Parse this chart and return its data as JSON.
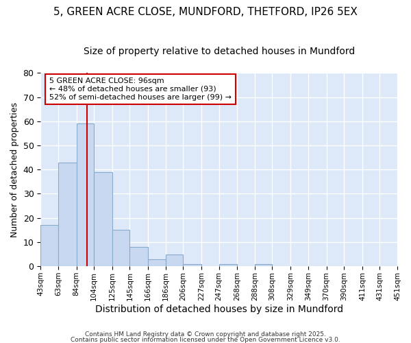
{
  "title": "5, GREEN ACRE CLOSE, MUNDFORD, THETFORD, IP26 5EX",
  "subtitle": "Size of property relative to detached houses in Mundford",
  "xlabel": "Distribution of detached houses by size in Mundford",
  "ylabel": "Number of detached properties",
  "bar_values": [
    17,
    43,
    59,
    39,
    15,
    8,
    3,
    5,
    1,
    0,
    1,
    0,
    1,
    0,
    0,
    0,
    0,
    0,
    0,
    0
  ],
  "bin_edges": [
    43,
    63,
    84,
    104,
    125,
    145,
    166,
    186,
    206,
    227,
    247,
    268,
    288,
    308,
    329,
    349,
    370,
    390,
    411,
    431,
    451
  ],
  "x_tick_labels": [
    "43sqm",
    "63sqm",
    "84sqm",
    "104sqm",
    "125sqm",
    "145sqm",
    "166sqm",
    "186sqm",
    "206sqm",
    "227sqm",
    "247sqm",
    "268sqm",
    "288sqm",
    "308sqm",
    "329sqm",
    "349sqm",
    "370sqm",
    "390sqm",
    "411sqm",
    "431sqm",
    "451sqm"
  ],
  "bar_color": "#c8d8f0",
  "bar_edge_color": "#88aacc",
  "red_line_x": 96,
  "annotation_line1": "5 GREEN ACRE CLOSE: 96sqm",
  "annotation_line2": "← 48% of detached houses are smaller (93)",
  "annotation_line3": "52% of semi-detached houses are larger (99) →",
  "annotation_box_color": "#ffffff",
  "annotation_box_edge": "#cc0000",
  "ylim": [
    0,
    80
  ],
  "yticks": [
    0,
    10,
    20,
    30,
    40,
    50,
    60,
    70,
    80
  ],
  "fig_bg_color": "#ffffff",
  "plot_bg_color": "#dde8f8",
  "grid_color": "#ffffff",
  "footer_line1": "Contains HM Land Registry data © Crown copyright and database right 2025.",
  "footer_line2": "Contains public sector information licensed under the Open Government Licence v3.0.",
  "title_fontsize": 11,
  "subtitle_fontsize": 10,
  "ylabel_fontsize": 9,
  "xlabel_fontsize": 10
}
